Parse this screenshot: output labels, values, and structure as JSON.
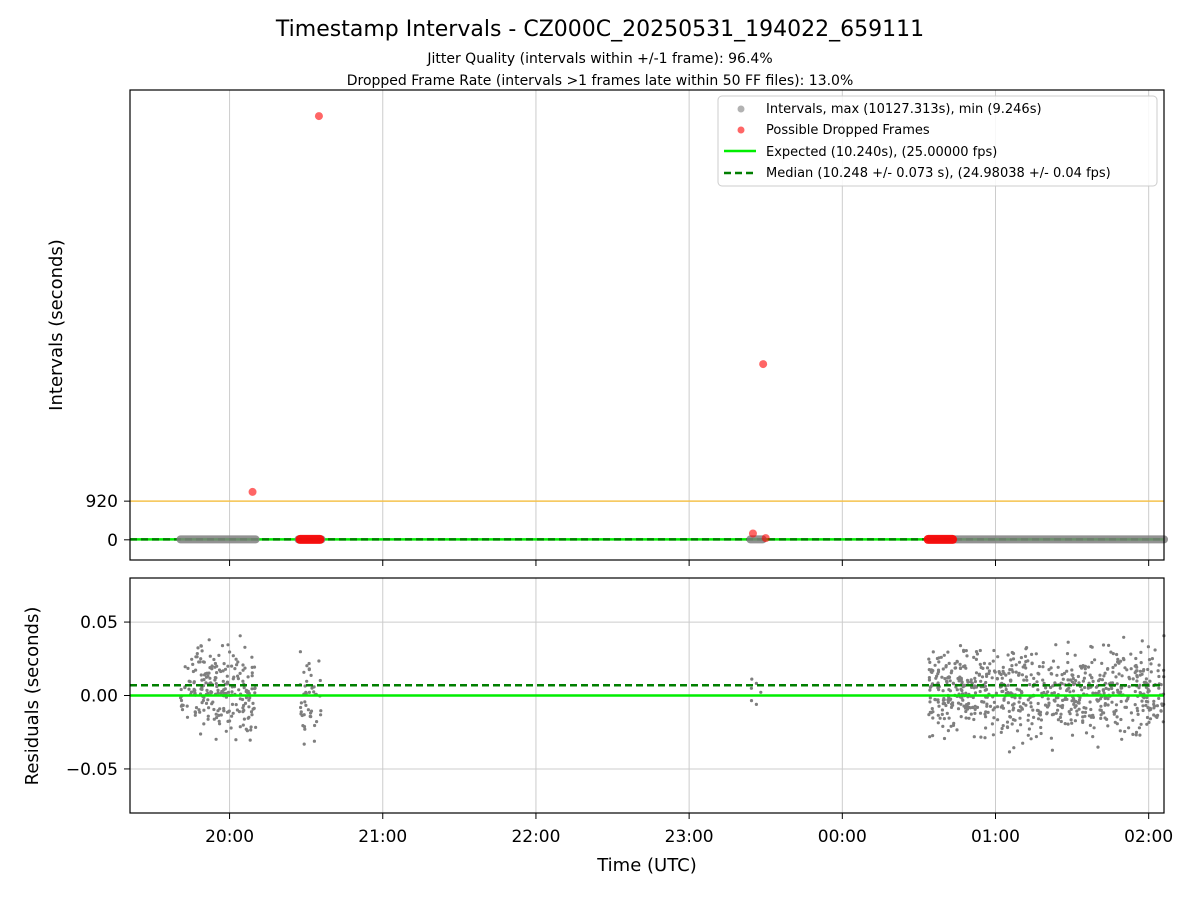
{
  "header": {
    "title": "Timestamp Intervals - CZ000C_20250531_194022_659111",
    "subtitle_1": "Jitter Quality (intervals within +/-1 frame): 96.4%",
    "subtitle_2": "Dropped Frame Rate (intervals >1 frames late within 50 FF files): 13.0%"
  },
  "legend": {
    "intervals": "Intervals, max (10127.313s), min (9.246s)",
    "dropped": "Possible Dropped Frames",
    "expected": "Expected (10.240s), (25.00000 fps)",
    "median": "Median (10.248 +/- 0.073 s), (24.98038 +/- 0.04 fps)"
  },
  "colors": {
    "intervals": "#7f7f7f",
    "dropped": "#ff0000",
    "expected": "#00ee00",
    "median": "#007f00",
    "threshold": "#f5c24d",
    "grid": "#cccccc"
  },
  "chart_data": [
    {
      "type": "scatter",
      "ylabel": "Intervals (seconds)",
      "y_ticks": [
        {
          "value": 0,
          "label": "0"
        },
        {
          "value": 920,
          "label": "920"
        }
      ],
      "ylim": [
        -480,
        10700
      ],
      "x_ticks": [
        "20:00",
        "21:00",
        "22:00",
        "23:00",
        "00:00",
        "01:00",
        "02:00"
      ],
      "xlim_hours": [
        19.35,
        26.1
      ],
      "threshold_line": 920,
      "expected": 10.24,
      "median": 10.248,
      "interval_ranges_hours": [
        [
          19.68,
          20.17
        ],
        [
          20.45,
          20.6
        ],
        [
          23.4,
          23.48
        ],
        [
          24.57,
          26.1
        ]
      ],
      "dropped_frames": [
        {
          "x": "20:09",
          "y": 1140
        },
        {
          "x": "20:35",
          "y": 10080
        },
        {
          "x": "23:29",
          "y": 4180
        },
        {
          "x": "23:25",
          "y": 150
        },
        {
          "x": "23:30",
          "y": 40
        }
      ],
      "dropped_clusters_hours": [
        [
          20.46,
          20.59
        ],
        [
          24.56,
          24.72
        ]
      ]
    },
    {
      "type": "scatter",
      "ylabel": "Residuals (seconds)",
      "xlabel": "Time (UTC)",
      "ylim": [
        -0.08,
        0.08
      ],
      "y_ticks": [
        {
          "value": 0.05,
          "label": "0.05"
        },
        {
          "value": 0.0,
          "label": "0.00"
        },
        {
          "value": -0.05,
          "label": "−0.05"
        }
      ],
      "x_ticks": [
        "20:00",
        "21:00",
        "22:00",
        "23:00",
        "00:00",
        "01:00",
        "02:00"
      ],
      "xlim_hours": [
        19.35,
        26.1
      ],
      "expected_residual": 0.0,
      "median_residual": 0.007,
      "residual_range": [
        -0.042,
        0.047
      ],
      "residual_clusters_hours": [
        [
          19.68,
          20.17
        ],
        [
          20.46,
          20.6
        ],
        [
          23.4,
          23.48
        ],
        [
          24.56,
          26.1
        ]
      ]
    }
  ]
}
